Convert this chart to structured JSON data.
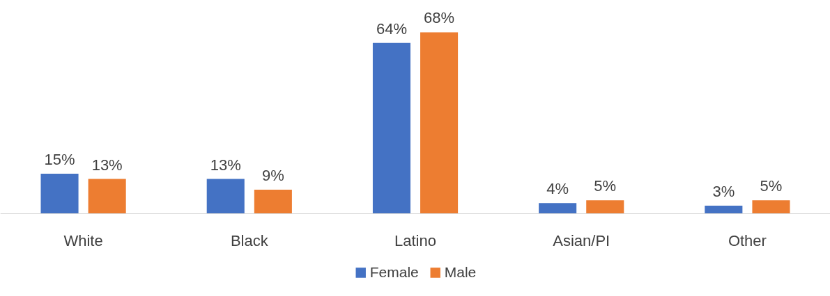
{
  "chart_data": {
    "type": "bar",
    "categories": [
      "White",
      "Black",
      "Latino",
      "Asian/PI",
      "Other"
    ],
    "series": [
      {
        "name": "Female",
        "color": "#4472c4",
        "values": [
          15,
          13,
          64,
          4,
          3
        ],
        "value_labels": [
          "15%",
          "13%",
          "64%",
          "4%",
          "3%"
        ]
      },
      {
        "name": "Male",
        "color": "#ed7d31",
        "values": [
          13,
          9,
          68,
          5,
          5
        ],
        "value_labels": [
          "13%",
          "9%",
          "68%",
          "5%",
          "5%"
        ]
      }
    ],
    "legend": "bottom"
  }
}
